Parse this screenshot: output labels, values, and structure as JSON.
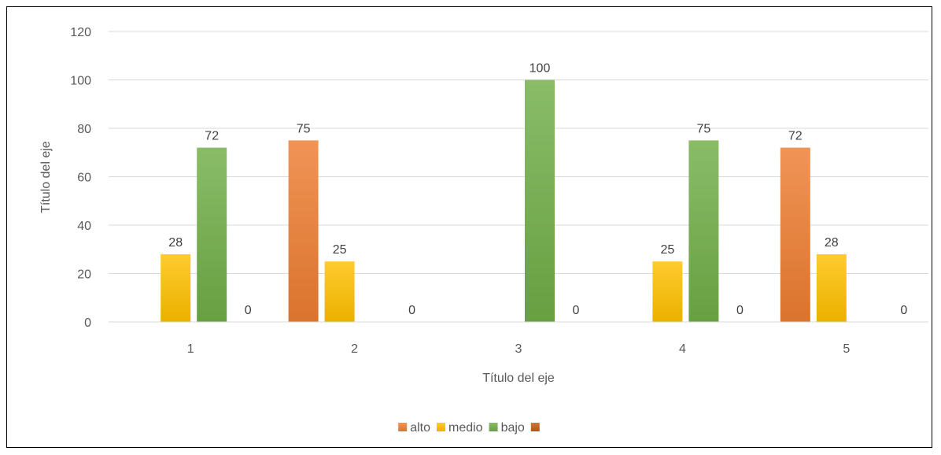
{
  "chart_data": {
    "type": "bar",
    "categories": [
      "1",
      "2",
      "3",
      "4",
      "5"
    ],
    "series": [
      {
        "name": "alto",
        "color": "#ED7D31",
        "values": [
          null,
          75,
          null,
          null,
          72
        ]
      },
      {
        "name": "medio",
        "color": "#FFC000",
        "values": [
          28,
          25,
          null,
          25,
          28
        ]
      },
      {
        "name": "bajo",
        "color": "#70AD47",
        "values": [
          72,
          null,
          100,
          75,
          null
        ]
      },
      {
        "name": "",
        "color": "#C55A11",
        "values": [
          0,
          0,
          0,
          0,
          0
        ]
      }
    ],
    "xlabel": "Título del eje",
    "ylabel": "Título del eje",
    "ylim": [
      0,
      120
    ],
    "yticks": [
      "0",
      "20",
      "40",
      "60",
      "80",
      "100",
      "120"
    ],
    "grid": true,
    "legend_position": "bottom"
  }
}
